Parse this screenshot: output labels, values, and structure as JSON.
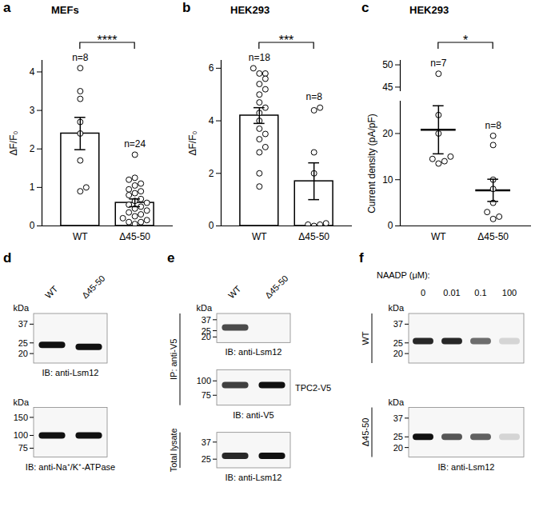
{
  "chart_data": [
    {
      "panel": "a",
      "type": "bar",
      "title": "MEFs",
      "y_label": "ΔF/F₀",
      "categories": [
        "WT",
        "Δ45-50"
      ],
      "values": [
        2.4,
        0.6
      ],
      "errors": [
        0.42,
        0.1
      ],
      "points": [
        [
          4.1,
          3.5,
          3.3,
          2.7,
          2.4,
          1.7,
          1.0,
          0.9
        ],
        [
          1.85,
          1.25,
          1.2,
          1.1,
          1.05,
          0.95,
          0.9,
          0.85,
          0.8,
          0.7,
          0.65,
          0.6,
          0.55,
          0.5,
          0.45,
          0.4,
          0.35,
          0.3,
          0.25,
          0.2,
          0.15,
          0.1,
          0.1,
          0.05
        ]
      ],
      "n_labels": [
        "n=8",
        "n=24"
      ],
      "significance": "****",
      "ylim": [
        0,
        4.3
      ],
      "yticks": [
        0,
        1,
        2,
        3,
        4
      ],
      "color": "#ffffff"
    },
    {
      "panel": "b",
      "type": "bar",
      "title": "HEK293",
      "y_label": "ΔF/F₀",
      "categories": [
        "WT",
        "Δ45-50"
      ],
      "values": [
        4.2,
        1.7
      ],
      "errors": [
        0.3,
        0.7
      ],
      "points": [
        [
          6.0,
          5.8,
          5.8,
          5.6,
          5.4,
          5.2,
          5.0,
          4.7,
          4.5,
          4.3,
          4.0,
          3.7,
          3.5,
          3.3,
          3.0,
          2.8,
          2.0,
          1.5
        ],
        [
          4.5,
          4.4,
          2.8,
          2.0,
          0.1,
          0.05,
          0.05,
          0.0
        ]
      ],
      "n_labels": [
        "n=18",
        "n=8"
      ],
      "significance": "***",
      "ylim": [
        0,
        6.3
      ],
      "yticks": [
        0,
        2,
        4,
        6
      ],
      "color": "#ffffff"
    },
    {
      "panel": "c",
      "type": "dot",
      "title": "HEK293",
      "y_label": "Current density (pA/pF)",
      "categories": [
        "WT",
        "Δ45-50"
      ],
      "values": [
        20.8,
        7.7
      ],
      "errors": [
        5.2,
        2.4
      ],
      "points": [
        [
          48,
          24,
          20,
          15,
          14.5,
          14,
          13.5
        ],
        [
          19.5,
          17.5,
          10,
          8,
          5,
          3,
          2,
          1.5
        ]
      ],
      "n_labels": [
        "n=7",
        "n=8"
      ],
      "significance": "*",
      "ylim": [
        0,
        51
      ],
      "y_break": [
        27,
        44
      ],
      "yticks": [
        0,
        10,
        20,
        45,
        50
      ],
      "color": "#000000"
    }
  ],
  "blots": [
    {
      "panel": "d",
      "lanes": [
        "WT",
        "Δ45-50"
      ],
      "membranes": [
        {
          "unit": "kDa",
          "markers": [
            37,
            25,
            20
          ],
          "band_kda": [
            24,
            23
          ],
          "intensity": [
            1,
            1
          ],
          "label": "IB: anti-Lsm12"
        },
        {
          "unit": "kDa",
          "markers": [
            150,
            100,
            75
          ],
          "band_kda": [
            100,
            100
          ],
          "intensity": [
            1,
            1
          ],
          "label": "IB: anti-Na⁺/K⁺-ATPase"
        }
      ]
    },
    {
      "panel": "e",
      "lanes": [
        "WT",
        "Δ45-50"
      ],
      "membranes": [
        {
          "unit": "kDa",
          "side_label": "IP: anti-V5",
          "markers": [
            37,
            25,
            20
          ],
          "band_kda": [
            28,
            28
          ],
          "intensity": [
            0.75,
            0
          ],
          "label": "IB: anti-Lsm12"
        },
        {
          "markers": [
            100,
            75
          ],
          "band_kda": [
            92,
            92
          ],
          "intensity": [
            0.8,
            1
          ],
          "right_label": "TPC2-V5",
          "label": "IB: anti-V5"
        },
        {
          "side_label": "Total lysate",
          "markers": [
            37,
            25
          ],
          "band_kda": [
            27,
            27
          ],
          "intensity": [
            0.9,
            1
          ],
          "label": "IB: anti-Lsm12"
        }
      ]
    },
    {
      "panel": "f",
      "lane_title": "NAADP (μM):",
      "lanes": [
        0,
        0.01,
        0.1,
        100
      ],
      "membranes": [
        {
          "unit": "kDa",
          "side_label": "WT",
          "markers": [
            37,
            25,
            20
          ],
          "band_kda": [
            26,
            26,
            26,
            26
          ],
          "intensity": [
            0.9,
            0.9,
            0.6,
            0.15
          ]
        },
        {
          "unit": "kDa",
          "side_label": "Δ45-50",
          "markers": [
            37,
            25,
            20
          ],
          "band_kda": [
            25,
            25,
            25,
            25
          ],
          "intensity": [
            1,
            0.7,
            0.65,
            0.15
          ],
          "label": "IB: anti-Lsm12"
        }
      ]
    }
  ]
}
